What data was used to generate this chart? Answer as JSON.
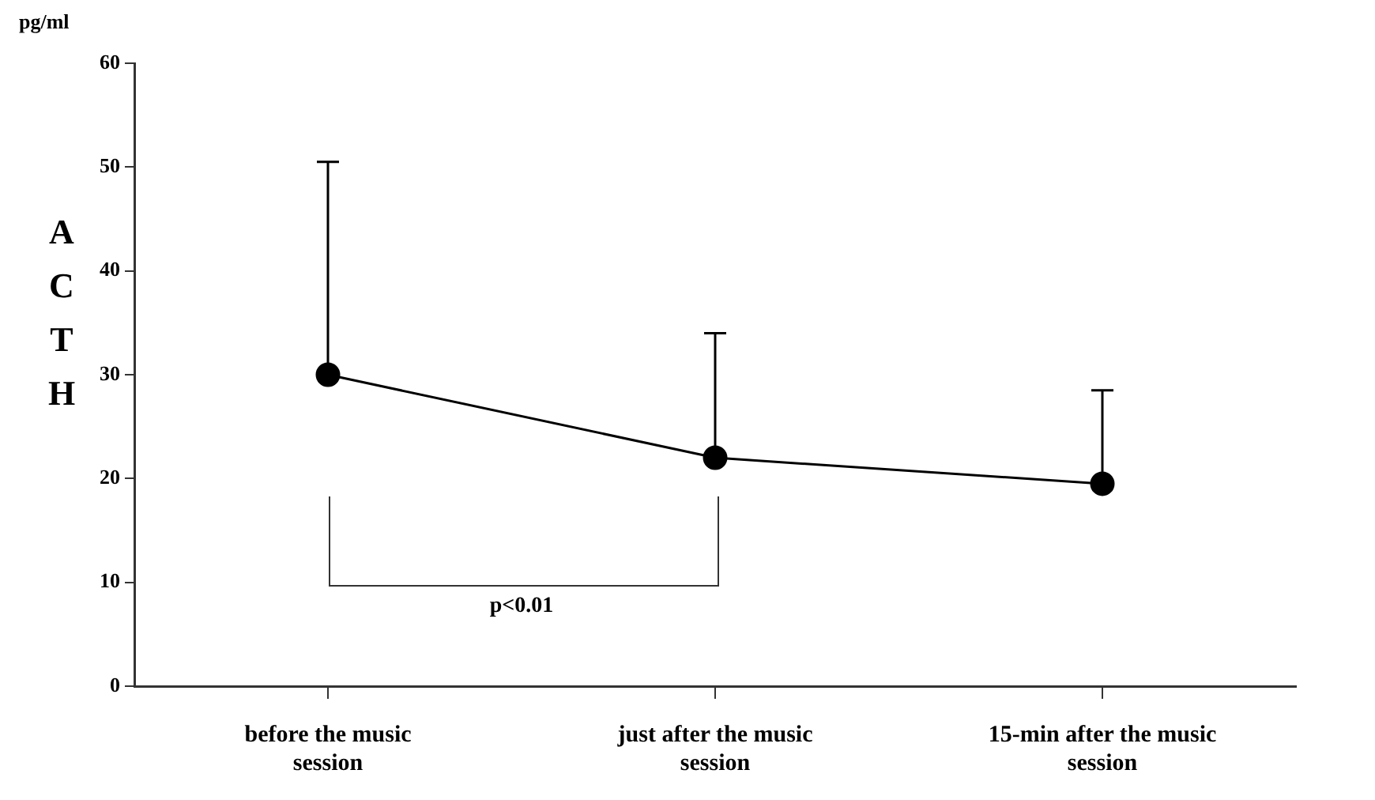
{
  "chart_data": {
    "type": "line",
    "ylabel": "ACTH",
    "categories": [
      "before the music session",
      "just after the music session",
      "15-min after the music session"
    ],
    "color": "#000000",
    "values": [
      30,
      22,
      19.5
    ],
    "errors": [
      [
        30,
        50.5
      ],
      [
        22,
        34
      ],
      [
        19.5,
        28.5
      ]
    ],
    "ylim": [
      0,
      60
    ],
    "yticks": [
      0,
      10,
      20,
      30,
      40,
      50,
      60
    ],
    "annotations": [
      "pg/ml",
      "p<0.01"
    ],
    "grid": false,
    "legend": false,
    "marker": "circle",
    "line_style": "solid"
  }
}
